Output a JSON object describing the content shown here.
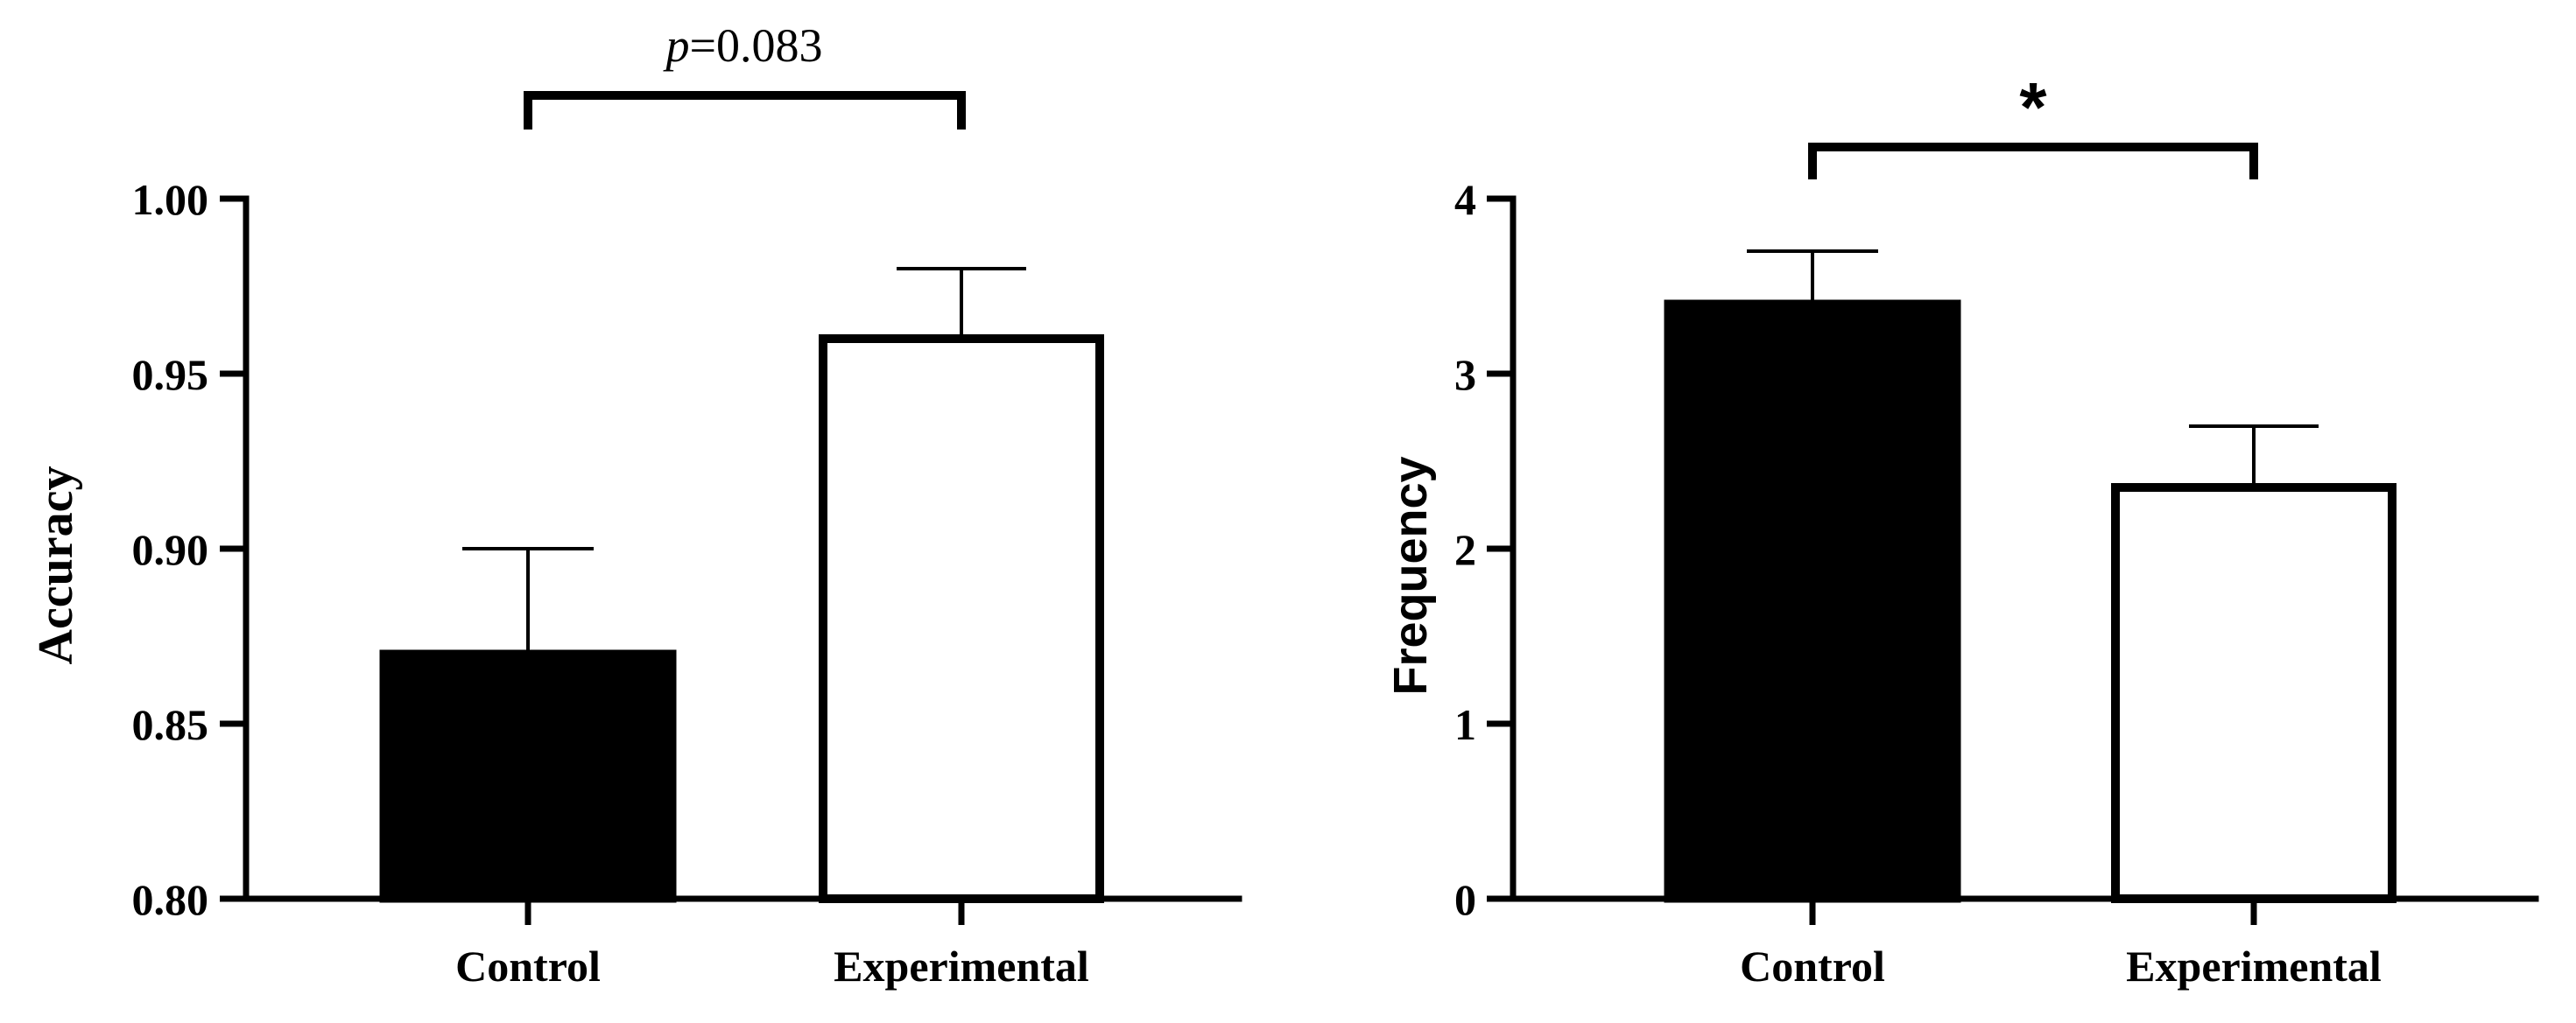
{
  "chart_data": [
    {
      "type": "bar",
      "title": "",
      "xlabel": "",
      "ylabel": "Accuracy",
      "categories": [
        "Control",
        "Experimental"
      ],
      "values": [
        0.87,
        0.96
      ],
      "error_upper": [
        0.9,
        0.98
      ],
      "ylim": [
        0.8,
        1.0
      ],
      "yticks": [
        "0.80",
        "0.85",
        "0.90",
        "0.95",
        "1.00"
      ],
      "bar_colors": [
        "#000000",
        "#ffffff"
      ],
      "annotation": {
        "prefix": "p",
        "text": "=0.083"
      }
    },
    {
      "type": "bar",
      "title": "",
      "xlabel": "",
      "ylabel": "Frequency",
      "categories": [
        "Control",
        "Experimental"
      ],
      "values": [
        3.4,
        2.35
      ],
      "error_upper": [
        3.7,
        2.7
      ],
      "ylim": [
        0,
        4
      ],
      "yticks": [
        "0",
        "1",
        "2",
        "3",
        "4"
      ],
      "bar_colors": [
        "#000000",
        "#ffffff"
      ],
      "annotation": {
        "prefix": "",
        "text": "*"
      }
    }
  ]
}
